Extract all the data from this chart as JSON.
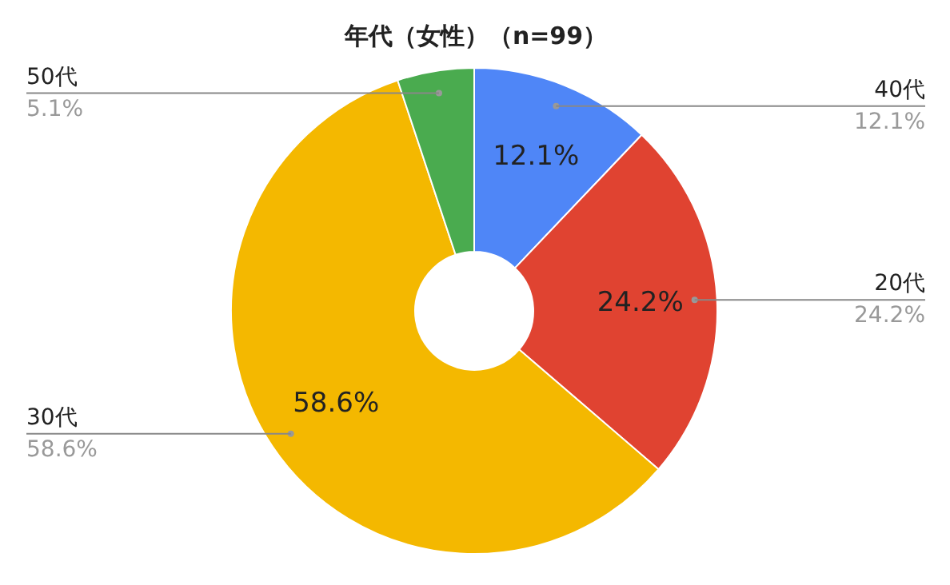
{
  "chart_data": {
    "type": "donut",
    "title": "年代（女性）（n=99）",
    "categories": [
      "40代",
      "20代",
      "30代",
      "50代"
    ],
    "values": [
      12.1,
      24.2,
      58.6,
      5.1
    ],
    "value_labels": [
      "12.1%",
      "24.2%",
      "58.6%",
      "5.1%"
    ],
    "colors": [
      "#4f86f7",
      "#e04331",
      "#f4b800",
      "#4aab4f"
    ]
  }
}
